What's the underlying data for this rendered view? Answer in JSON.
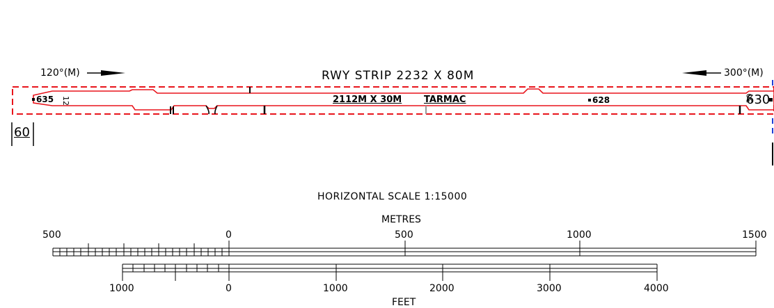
{
  "runway": {
    "strip_label": "RWY STRIP 2232 X 80M",
    "dimensions_label": "2112M X 30M",
    "surface_label": "TARMAC",
    "heading_west": "120°(M)",
    "heading_east": "300°(M)",
    "elevation_west": "635",
    "elevation_mid": "628",
    "elevation_east": "630",
    "threshold_west": "12",
    "threshold_east": "30",
    "strip_width_label": "60"
  },
  "scale": {
    "title": "HORIZONTAL SCALE 1:15000",
    "metres_label": "METRES",
    "metres_ticks": [
      "500",
      "0",
      "500",
      "1000",
      "1500"
    ],
    "feet_label": "FEET",
    "feet_ticks": [
      "1000",
      "0",
      "1000",
      "2000",
      "3000",
      "4000"
    ]
  },
  "colors": {
    "runway_outline": "#e8141b",
    "ink": "#000000",
    "edge_marker": "#1f3fd6",
    "centre_tick": "#9a9a9a"
  }
}
